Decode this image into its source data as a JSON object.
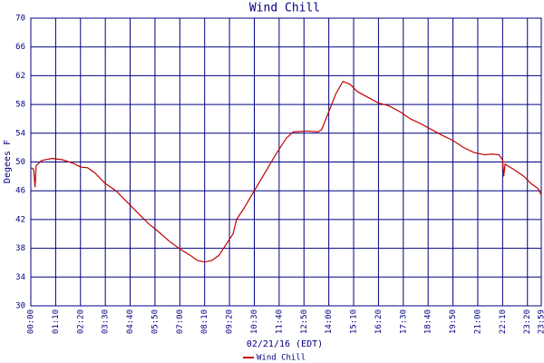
{
  "chart_data": {
    "type": "line",
    "title": "Wind Chill",
    "x_label": "02/21/16 (EDT)",
    "y_label": "Degees F",
    "x": [
      0,
      8,
      12,
      15,
      30,
      60,
      90,
      120,
      140,
      160,
      180,
      210,
      240,
      270,
      300,
      330,
      360,
      390,
      420,
      450,
      470,
      490,
      510,
      530,
      550,
      570,
      580,
      600,
      630,
      660,
      690,
      720,
      740,
      780,
      810,
      820,
      840,
      860,
      880,
      900,
      920,
      950,
      980,
      1010,
      1040,
      1070,
      1100,
      1130,
      1160,
      1190,
      1220,
      1250,
      1280,
      1300,
      1320,
      1330,
      1333,
      1337,
      1360,
      1390,
      1410,
      1430,
      1439
    ],
    "series": [
      {
        "name": "Wind Chill",
        "color": "#c00000",
        "values": [
          49.2,
          49.0,
          46.5,
          49.5,
          50.2,
          50.5,
          50.3,
          49.8,
          49.3,
          49.2,
          48.5,
          47.0,
          46.0,
          44.5,
          43.0,
          41.5,
          40.3,
          39.0,
          37.9,
          37.0,
          36.3,
          36.1,
          36.3,
          37.0,
          38.5,
          40.0,
          42.0,
          43.5,
          46.0,
          48.5,
          51.0,
          53.3,
          54.2,
          54.3,
          54.2,
          54.5,
          57.0,
          59.5,
          61.2,
          60.8,
          59.8,
          59.0,
          58.2,
          57.8,
          57.0,
          56.0,
          55.3,
          54.5,
          53.7,
          53.0,
          52.0,
          51.3,
          51.0,
          51.1,
          51.0,
          50.3,
          48.0,
          49.7,
          49.0,
          48.0,
          47.0,
          46.3,
          45.4
        ]
      }
    ],
    "xlim": [
      0,
      1439
    ],
    "xticks": [
      {
        "value": 0,
        "label": "00:00"
      },
      {
        "value": 70,
        "label": "01:10"
      },
      {
        "value": 140,
        "label": "02:20"
      },
      {
        "value": 210,
        "label": "03:30"
      },
      {
        "value": 280,
        "label": "04:40"
      },
      {
        "value": 350,
        "label": "05:50"
      },
      {
        "value": 420,
        "label": "07:00"
      },
      {
        "value": 490,
        "label": "08:10"
      },
      {
        "value": 560,
        "label": "09:20"
      },
      {
        "value": 630,
        "label": "10:30"
      },
      {
        "value": 700,
        "label": "11:40"
      },
      {
        "value": 770,
        "label": "12:50"
      },
      {
        "value": 840,
        "label": "14:00"
      },
      {
        "value": 910,
        "label": "15:10"
      },
      {
        "value": 980,
        "label": "16:20"
      },
      {
        "value": 1050,
        "label": "17:30"
      },
      {
        "value": 1120,
        "label": "18:40"
      },
      {
        "value": 1190,
        "label": "19:50"
      },
      {
        "value": 1260,
        "label": "21:00"
      },
      {
        "value": 1330,
        "label": "22:10"
      },
      {
        "value": 1400,
        "label": "23:20"
      },
      {
        "value": 1439,
        "label": "23:59"
      }
    ],
    "ylim": [
      30,
      70
    ],
    "yticks": [
      30,
      34,
      38,
      42,
      46,
      50,
      54,
      58,
      62,
      66,
      70
    ],
    "grid": true
  }
}
